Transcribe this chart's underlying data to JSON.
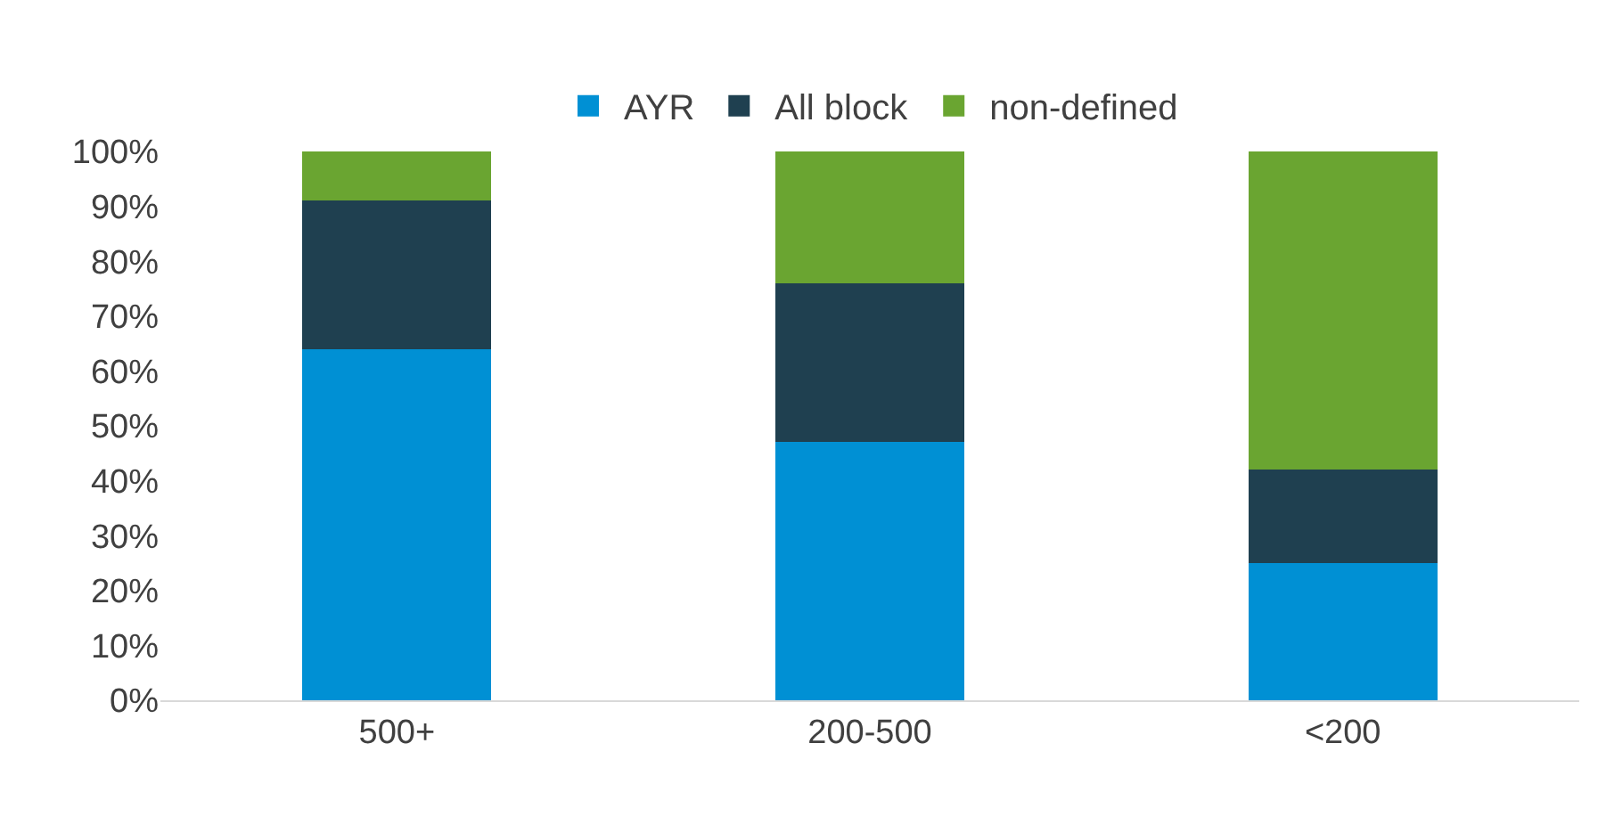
{
  "chart_data": {
    "type": "bar",
    "stacked": true,
    "categories": [
      "500+",
      "200-500",
      "<200"
    ],
    "series": [
      {
        "name": "AYR",
        "color": "#0090d4",
        "values": [
          64,
          47,
          25
        ]
      },
      {
        "name": "All block",
        "color": "#1f4050",
        "values": [
          27,
          29,
          17
        ]
      },
      {
        "name": "non-defined",
        "color": "#6aa531",
        "values": [
          9,
          24,
          58
        ]
      }
    ],
    "ylim": [
      0,
      100
    ],
    "yticks": [
      {
        "value": 0,
        "label": "0%"
      },
      {
        "value": 10,
        "label": "10%"
      },
      {
        "value": 20,
        "label": "20%"
      },
      {
        "value": 30,
        "label": "30%"
      },
      {
        "value": 40,
        "label": "40%"
      },
      {
        "value": 50,
        "label": "50%"
      },
      {
        "value": 60,
        "label": "60%"
      },
      {
        "value": 70,
        "label": "70%"
      },
      {
        "value": 80,
        "label": "80%"
      },
      {
        "value": 90,
        "label": "90%"
      },
      {
        "value": 100,
        "label": "100%"
      }
    ],
    "legend": "top"
  }
}
